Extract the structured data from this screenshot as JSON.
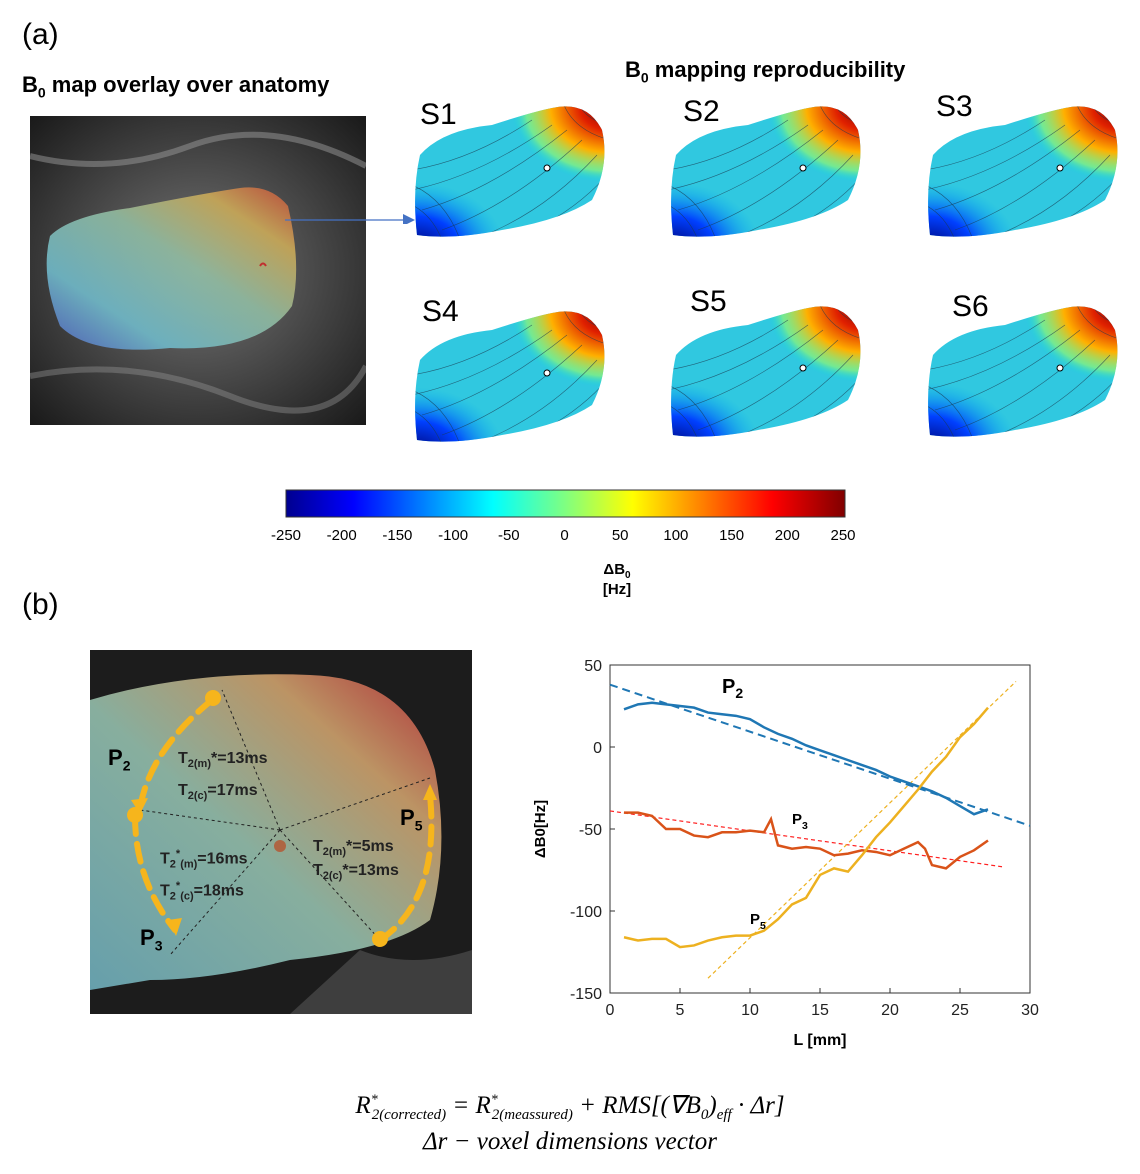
{
  "panel_a": {
    "label": "(a)",
    "overlay_title": "B",
    "overlay_title_sub": "0",
    "overlay_title_rest": " map overlay over anatomy",
    "repro_title": "B",
    "repro_title_sub": "0",
    "repro_title_rest": "  mapping reproducibility",
    "sessions": [
      "S1",
      "S2",
      "S3",
      "S4",
      "S5",
      "S6"
    ]
  },
  "colorbar": {
    "ticks": [
      "-250",
      "-200",
      "-150",
      "-100",
      "-50",
      "0",
      "50",
      "100",
      "150",
      "200",
      "250"
    ],
    "label": "ΔB",
    "label_sub": "0",
    "unit": "[Hz]"
  },
  "panel_b": {
    "label": "(b)",
    "paths": {
      "p2": "P",
      "p2_sub": "2",
      "p3": "P",
      "p3_sub": "3",
      "p5": "P",
      "p5_sub": "5"
    },
    "t2_sector1_m": {
      "a": "T",
      "b": "2(m)",
      "c": "*=13ms"
    },
    "t2_sector1_c": {
      "a": "T",
      "b": "2(c)",
      "c": "=17ms"
    },
    "t2_sector2_m": {
      "a": "T",
      "b": "2",
      "c": "*",
      "d": "(m)",
      "e": "=16ms"
    },
    "t2_sector2_c": {
      "a": "T",
      "b": "2",
      "c": "*",
      "d": "(c)",
      "e": "=18ms"
    },
    "t2_sector3_m": {
      "a": "T",
      "b": "2(m)",
      "c": "*=5ms"
    },
    "t2_sector3_c": {
      "a": "T",
      "b": "2(c)",
      "c": "*=13ms"
    }
  },
  "chart_data": {
    "type": "line",
    "xlabel": "L [mm]",
    "ylabel": "ΔB0[Hz]",
    "xlim": [
      0,
      30
    ],
    "ylim": [
      -150,
      50
    ],
    "xticks": [
      "0",
      "5",
      "10",
      "15",
      "20",
      "25",
      "30"
    ],
    "yticks": [
      "50",
      "0",
      "-50",
      "-100",
      "-150"
    ],
    "series": [
      {
        "name": "P2",
        "label_a": "P",
        "label_b": "2",
        "color": "#1f77b4",
        "x": [
          1,
          2,
          3,
          4,
          5,
          6,
          7,
          8,
          9,
          10,
          11,
          12,
          13,
          14,
          15,
          16,
          17,
          18,
          19,
          20,
          21,
          22,
          23,
          24,
          25,
          26,
          27
        ],
        "y": [
          23,
          26,
          27,
          26,
          25,
          24,
          21,
          20,
          19,
          17,
          12,
          8,
          5,
          1,
          -2,
          -5,
          -8,
          -11,
          -14,
          -18,
          -21,
          -24,
          -27,
          -31,
          -36,
          -41,
          -38
        ]
      },
      {
        "name": "P3",
        "label_a": "P",
        "label_b": "3",
        "color": "#d95319",
        "x": [
          1,
          2,
          3,
          4,
          5,
          6,
          7,
          8,
          9,
          10,
          11,
          11.5,
          12,
          13,
          14,
          15,
          16,
          17,
          18,
          19,
          20,
          21,
          22,
          22.5,
          23,
          24,
          25,
          26,
          27
        ],
        "y": [
          -40,
          -40,
          -42,
          -50,
          -50,
          -54,
          -55,
          -52,
          -52,
          -51,
          -52,
          -44,
          -60,
          -62,
          -61,
          -62,
          -66,
          -65,
          -63,
          -64,
          -66,
          -62,
          -58,
          -62,
          -72,
          -74,
          -67,
          -63,
          -57
        ]
      },
      {
        "name": "P5",
        "label_a": "P",
        "label_b": "5",
        "color": "#edb120",
        "x": [
          1,
          2,
          3,
          4,
          5,
          6,
          7,
          8,
          9,
          10,
          11,
          12,
          13,
          14,
          15,
          16,
          17,
          18,
          19,
          20,
          21,
          22,
          23,
          24,
          25,
          26,
          27
        ],
        "y": [
          -116,
          -118,
          -117,
          -117,
          -122,
          -121,
          -118,
          -116,
          -115,
          -115,
          -112,
          -105,
          -96,
          -92,
          -78,
          -74,
          -76,
          -66,
          -55,
          -46,
          -36,
          -26,
          -15,
          -6,
          6,
          14,
          24
        ]
      }
    ],
    "fits": [
      {
        "name": "P2 fit",
        "color": "#1f77b4",
        "x": [
          0,
          30
        ],
        "y": [
          38,
          -48
        ]
      },
      {
        "name": "P3 fit",
        "color": "#ff2020",
        "x": [
          0,
          28
        ],
        "y": [
          -39,
          -73
        ]
      },
      {
        "name": "P5 fit",
        "color": "#edb120",
        "x": [
          7,
          29
        ],
        "y": [
          -141,
          40
        ]
      }
    ]
  },
  "equation": {
    "line1_a": "R",
    "line1_b": "2(corrected)",
    "line1_c": " = R",
    "line1_d": "2(meassured)",
    "line1_e": "  + RMS[(∇B",
    "line1_f": "0",
    "line1_g": ")",
    "line1_h": "eff",
    "line1_i": " · Δr]",
    "line2": "Δr − voxel dimensions vector"
  }
}
